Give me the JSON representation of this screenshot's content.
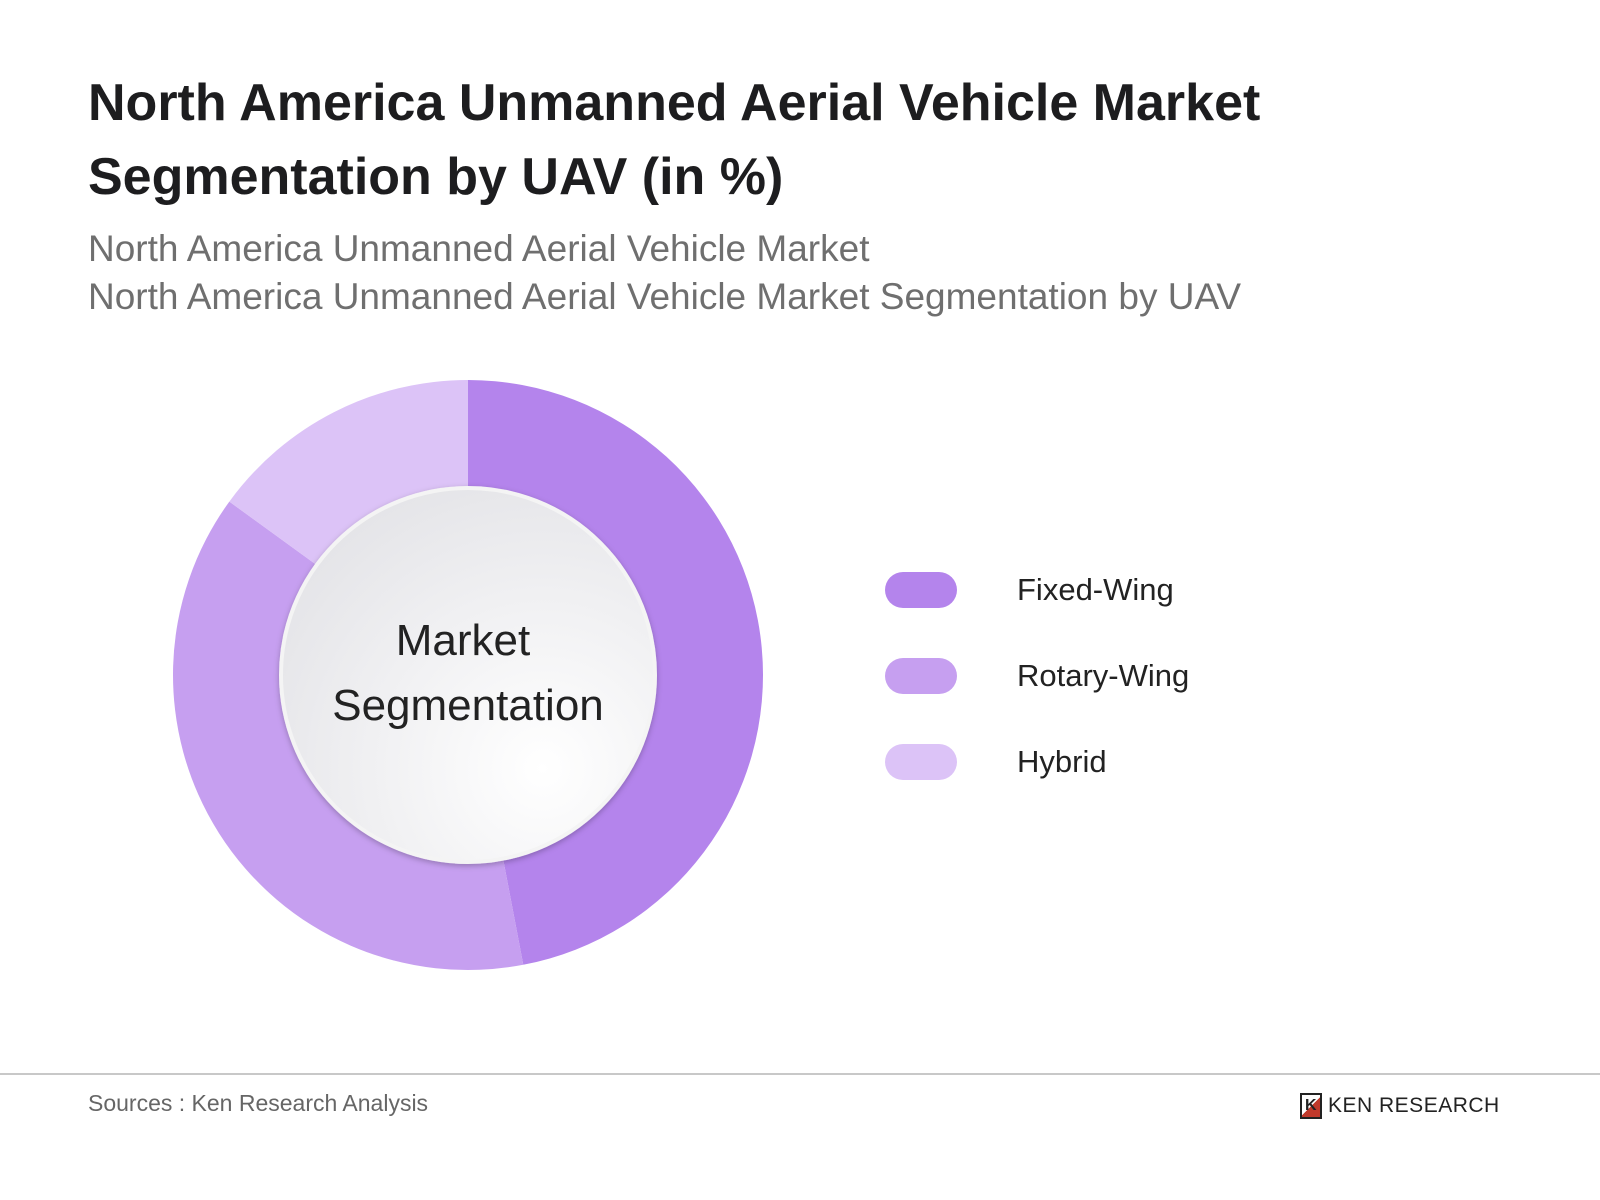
{
  "title": "North America Unmanned Aerial Vehicle Market Segmentation by UAV (in %)",
  "subtitle_line1": "North America Unmanned Aerial Vehicle Market",
  "subtitle_line2": "North America Unmanned Aerial Vehicle Market Segmentation by UAV",
  "chart_data": {
    "type": "pie",
    "variant": "donut",
    "center_label": [
      "Market",
      "Segmentation"
    ],
    "categories": [
      "Fixed-Wing",
      "Rotary-Wing",
      "Hybrid"
    ],
    "values": [
      47,
      38,
      15
    ],
    "colors": [
      "#b484ec",
      "#c69ff0",
      "#dcc3f7"
    ],
    "legend_position": "right",
    "start_angle": "top, clockwise"
  },
  "footer": {
    "source": "Sources : Ken Research Analysis",
    "logo_text": "KEN RESEARCH"
  }
}
